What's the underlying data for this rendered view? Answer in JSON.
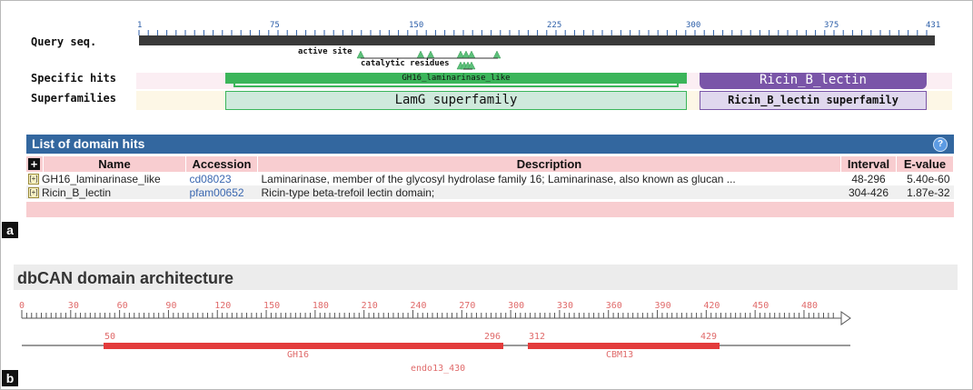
{
  "panel_a": {
    "badge": "a",
    "query_label": "Query seq.",
    "specific_hits_label": "Specific hits",
    "superfamilies_label": "Superfamilies",
    "ruler_ticks": [
      "1",
      "75",
      "150",
      "225",
      "300",
      "375",
      "431"
    ],
    "site_labels": {
      "active_site": "active site",
      "catalytic_residues": "catalytic residues"
    },
    "specific_hits": [
      {
        "name": "GH16_laminarinase_like",
        "color": "#3bb55a"
      },
      {
        "name": "Ricin_B_lectin",
        "color": "#7a55a8"
      }
    ],
    "superfamilies": [
      {
        "name": "LamG superfamily",
        "color": "#cfe9dc"
      },
      {
        "name": "Ricin_B_lectin superfamily",
        "color": "#e0d8ee"
      }
    ],
    "panel_title": "List of domain hits",
    "help_icon": "?",
    "table": {
      "expand_all": "+",
      "headers": [
        "Name",
        "Accession",
        "Description",
        "Interval",
        "E-value"
      ],
      "rows": [
        {
          "expander": "[+]",
          "name": "GH16_laminarinase_like",
          "accession": "cd08023",
          "description": "Laminarinase, member of the glycosyl hydrolase family 16; Laminarinase, also known as glucan ...",
          "interval": "48-296",
          "evalue": "5.40e-60"
        },
        {
          "expander": "[+]",
          "name": "Ricin_B_lectin",
          "accession": "pfam00652",
          "description": "Ricin-type beta-trefoil lectin domain;",
          "interval": "304-426",
          "evalue": "1.87e-32"
        }
      ]
    }
  },
  "panel_b": {
    "badge": "b",
    "title": "dbCAN domain architecture",
    "ruler_ticks": [
      "0",
      "30",
      "60",
      "90",
      "120",
      "150",
      "180",
      "210",
      "240",
      "270",
      "300",
      "330",
      "360",
      "390",
      "420",
      "450",
      "480"
    ],
    "domains": [
      {
        "name": "GH16",
        "start": "50",
        "end": "296"
      },
      {
        "name": "CBM13",
        "start": "312",
        "end": "429"
      }
    ],
    "protein_name": "endo13_430",
    "color": "#e33b3b"
  }
}
